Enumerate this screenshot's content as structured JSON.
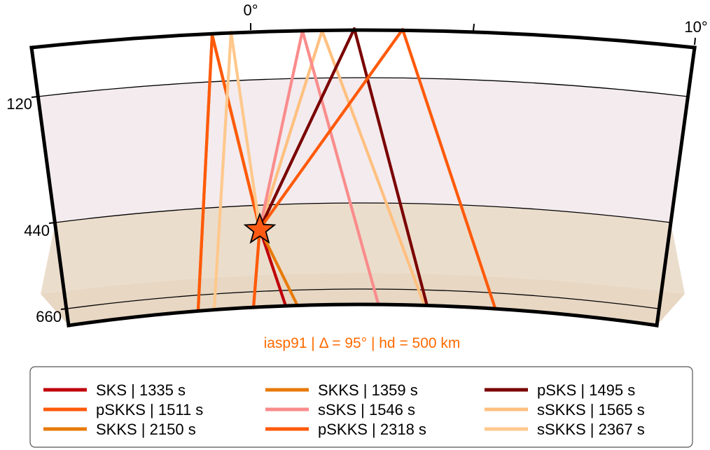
{
  "model_caption": "iasp91 | Δ = 95° | hd = 500 km",
  "caption_color": "#FF6A00",
  "axis": {
    "longitude_ticks": [
      "0°",
      "10°"
    ],
    "depth_ticks": [
      "120",
      "440",
      "660"
    ]
  },
  "layers": [
    {
      "name": "crust-upper",
      "color": "#FFFFFF"
    },
    {
      "name": "upper-mantle",
      "color": "#F3EBEE"
    },
    {
      "name": "transition-zone",
      "color": "#EBDDCC"
    },
    {
      "name": "lower-mantle",
      "color": "#E7D7C3"
    }
  ],
  "source_marker": {
    "icon": "star-icon",
    "color": "#FF5A14"
  },
  "legend": [
    {
      "label": "SKS | 1335 s",
      "color": "#C0000A"
    },
    {
      "label": "SKKS | 1359 s",
      "color": "#E87A0A"
    },
    {
      "label": "pSKS | 1495 s",
      "color": "#7A0000"
    },
    {
      "label": "pSKKS | 1511 s",
      "color": "#FF5A0A"
    },
    {
      "label": "sSKS | 1546 s",
      "color": "#FA8C8C"
    },
    {
      "label": "sSKKS | 1565 s",
      "color": "#FFC080"
    },
    {
      "label": "SKKS | 2150 s",
      "color": "#E87A0A"
    },
    {
      "label": "pSKKS | 2318 s",
      "color": "#FF5A0A"
    },
    {
      "label": "sSKKS | 2367 s",
      "color": "#FFC88C"
    }
  ]
}
